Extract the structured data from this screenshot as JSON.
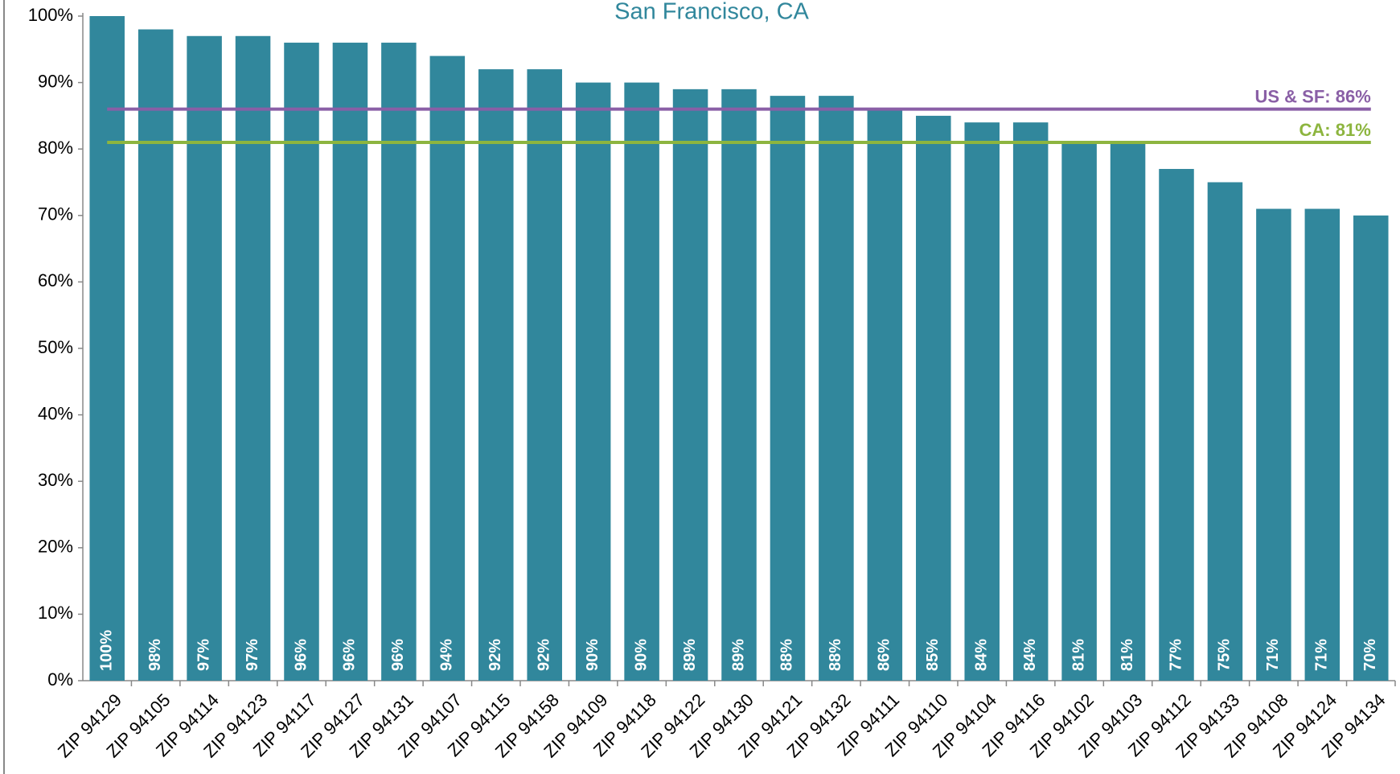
{
  "chart_data": {
    "type": "bar",
    "title": "San Francisco, CA",
    "categories": [
      "ZIP 94129",
      "ZIP 94105",
      "ZIP 94114",
      "ZIP 94123",
      "ZIP 94117",
      "ZIP 94127",
      "ZIP 94131",
      "ZIP 94107",
      "ZIP 94115",
      "ZIP 94158",
      "ZIP 94109",
      "ZIP 94118",
      "ZIP 94122",
      "ZIP 94130",
      "ZIP 94121",
      "ZIP 94132",
      "ZIP 94111",
      "ZIP 94110",
      "ZIP 94104",
      "ZIP 94116",
      "ZIP 94102",
      "ZIP 94103",
      "ZIP 94112",
      "ZIP 94133",
      "ZIP 94108",
      "ZIP 94124",
      "ZIP 94134"
    ],
    "values": [
      100,
      98,
      97,
      97,
      96,
      96,
      96,
      94,
      92,
      92,
      90,
      90,
      89,
      89,
      88,
      88,
      86,
      85,
      84,
      84,
      81,
      81,
      77,
      75,
      71,
      71,
      70
    ],
    "value_labels": [
      "100%",
      "98%",
      "97%",
      "97%",
      "96%",
      "96%",
      "96%",
      "94%",
      "92%",
      "92%",
      "90%",
      "90%",
      "89%",
      "89%",
      "88%",
      "88%",
      "86%",
      "85%",
      "84%",
      "84%",
      "81%",
      "81%",
      "77%",
      "75%",
      "71%",
      "71%",
      "70%"
    ],
    "color": "#31879c",
    "ylim": [
      0,
      100
    ],
    "yticks": [
      {
        "value": 0,
        "label": "0%"
      },
      {
        "value": 10,
        "label": "10%"
      },
      {
        "value": 20,
        "label": "20%"
      },
      {
        "value": 30,
        "label": "30%"
      },
      {
        "value": 40,
        "label": "40%"
      },
      {
        "value": 50,
        "label": "50%"
      },
      {
        "value": 60,
        "label": "60%"
      },
      {
        "value": 70,
        "label": "70%"
      },
      {
        "value": 80,
        "label": "80%"
      },
      {
        "value": 90,
        "label": "90%"
      },
      {
        "value": 100,
        "label": "100%"
      }
    ],
    "reference_lines": [
      {
        "label": "US & SF: 86%",
        "value": 86,
        "color": "#8a5fa6"
      },
      {
        "label": "CA: 81%",
        "value": 81,
        "color": "#8db53f"
      }
    ]
  }
}
